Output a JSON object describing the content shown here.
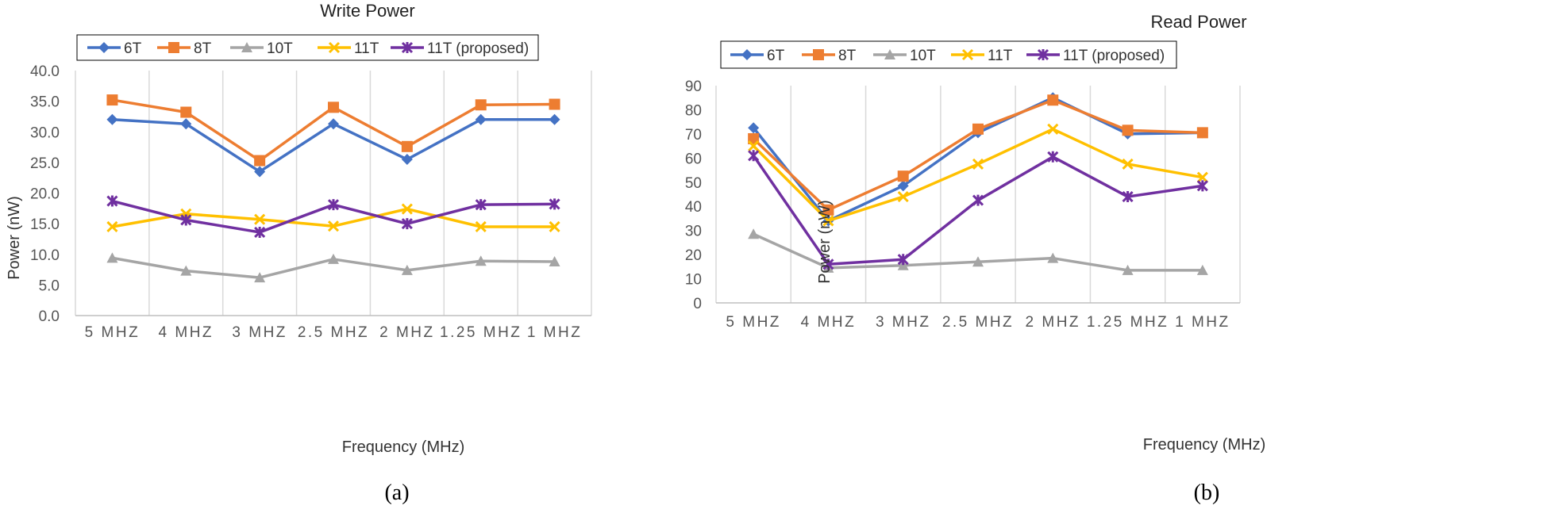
{
  "chart_data": [
    {
      "type": "line",
      "title": "Write Power",
      "xlabel": "Frequency (MHz)",
      "ylabel": "Power (nW)",
      "ylim": [
        0,
        40
      ],
      "ytick_step": 5,
      "ytick_decimals": 1,
      "caption": "(a)",
      "categories": [
        "5 MHZ",
        "4 MHZ",
        "3 MHZ",
        "2.5 MHZ",
        "2 MHZ",
        "1.25 MHZ",
        "1 MHZ"
      ],
      "grid": "vertical",
      "legend": "top",
      "series": [
        {
          "name": "6T",
          "values": [
            32.0,
            31.3,
            23.5,
            31.3,
            25.5,
            32.0,
            32.0
          ],
          "color": "#4472C4",
          "marker": "diamond"
        },
        {
          "name": "8T",
          "values": [
            35.2,
            33.2,
            25.3,
            34.0,
            27.6,
            34.4,
            34.5
          ],
          "color": "#ED7D31",
          "marker": "square"
        },
        {
          "name": "10T",
          "values": [
            9.4,
            7.3,
            6.2,
            9.2,
            7.4,
            8.9,
            8.8
          ],
          "color": "#A5A5A5",
          "marker": "triangle"
        },
        {
          "name": "11T",
          "values": [
            14.5,
            16.6,
            15.7,
            14.6,
            17.4,
            14.5,
            14.5
          ],
          "color": "#FFC000",
          "marker": "x"
        },
        {
          "name": "11T (proposed)",
          "values": [
            18.7,
            15.6,
            13.6,
            18.1,
            15.0,
            18.1,
            18.2
          ],
          "color": "#7030A0",
          "marker": "star"
        }
      ]
    },
    {
      "type": "line",
      "title": "Read Power",
      "xlabel": "Frequency (MHz)",
      "ylabel": "Power (nW)",
      "ylim": [
        0,
        90
      ],
      "ytick_step": 10,
      "ytick_decimals": 0,
      "caption": "(b)",
      "categories": [
        "5 MHZ",
        "4 MHZ",
        "3 MHZ",
        "2.5 MHZ",
        "2 MHZ",
        "1.25 MHZ",
        "1 MHZ"
      ],
      "grid": "vertical",
      "legend": "top",
      "series": [
        {
          "name": "6T",
          "values": [
            72.5,
            34.0,
            48.5,
            70.5,
            85.0,
            70.0,
            70.5
          ],
          "color": "#4472C4",
          "marker": "diamond"
        },
        {
          "name": "8T",
          "values": [
            68.0,
            38.5,
            52.5,
            72.0,
            84.0,
            71.5,
            70.5
          ],
          "color": "#ED7D31",
          "marker": "square"
        },
        {
          "name": "10T",
          "values": [
            28.5,
            14.5,
            15.5,
            17.0,
            18.5,
            13.5,
            13.5
          ],
          "color": "#A5A5A5",
          "marker": "triangle"
        },
        {
          "name": "11T",
          "values": [
            65.0,
            34.0,
            44.0,
            57.5,
            72.0,
            57.5,
            52.0
          ],
          "color": "#FFC000",
          "marker": "x"
        },
        {
          "name": "11T (proposed)",
          "values": [
            61.0,
            16.0,
            18.0,
            42.5,
            60.5,
            44.0,
            48.5
          ],
          "color": "#7030A0",
          "marker": "star"
        }
      ]
    }
  ]
}
